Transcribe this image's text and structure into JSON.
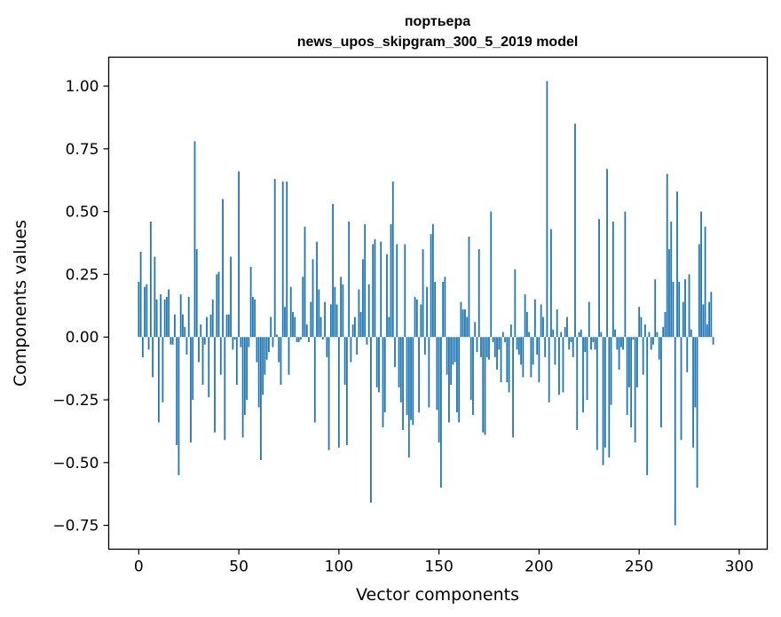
{
  "chart_data": {
    "type": "bar",
    "title": "портьера",
    "subtitle": "news_upos_skipgram_300_5_2019 model",
    "xlabel": "Vector components",
    "ylabel": "Components values",
    "xlim": [
      -15,
      314
    ],
    "ylim": [
      -0.845,
      1.115
    ],
    "xticks": [
      0,
      50,
      100,
      150,
      200,
      250,
      300
    ],
    "yticks": [
      -0.75,
      -0.5,
      -0.25,
      0.0,
      0.25,
      0.5,
      0.75,
      1.0
    ],
    "ytick_labels": [
      "−0.75",
      "−0.50",
      "−0.25",
      "0.00",
      "0.25",
      "0.50",
      "0.75",
      "1.00"
    ],
    "bar_color": "#1f77b4",
    "grid": false,
    "legend": "none",
    "values": [
      0.22,
      0.34,
      -0.08,
      0.2,
      0.21,
      -0.05,
      0.46,
      -0.16,
      0.32,
      0.15,
      -0.34,
      0.17,
      -0.26,
      0.15,
      0.16,
      0.19,
      -0.03,
      -0.03,
      0.09,
      -0.43,
      -0.55,
      0.17,
      0.09,
      0.04,
      -0.07,
      0.16,
      -0.42,
      -0.25,
      0.78,
      0.35,
      -0.1,
      0.05,
      -0.19,
      -0.03,
      0.08,
      -0.24,
      0.09,
      0.15,
      -0.38,
      0.25,
      0.26,
      -0.15,
      0.55,
      -0.41,
      0.09,
      0.09,
      0.32,
      -0.05,
      -0.01,
      -0.19,
      0.66,
      -0.04,
      -0.4,
      -0.31,
      -0.25,
      -0.04,
      0.28,
      0.16,
      0.15,
      -0.1,
      -0.28,
      -0.49,
      -0.23,
      -0.15,
      -0.09,
      -0.06,
      0.08,
      -0.04,
      0.63,
      0.01,
      -0.1,
      -0.19,
      0.62,
      0.12,
      0.62,
      -0.15,
      0.2,
      0.1,
      0.08,
      -0.02,
      -0.02,
      -0.01,
      0.24,
      0.44,
      0.05,
      -0.02,
      0.14,
      0.31,
      -0.34,
      0.38,
      0.19,
      0.08,
      -0.01,
      0.14,
      -0.08,
      -0.45,
      0.13,
      0.53,
      0.2,
      0.13,
      -0.44,
      0.24,
      0.21,
      -0.19,
      -0.43,
      0.46,
      -0.1,
      0.05,
      0.08,
      -0.07,
      0.19,
      0.1,
      0.31,
      0.45,
      -0.03,
      0.21,
      -0.66,
      0.37,
      0.39,
      -0.2,
      -0.22,
      0.38,
      -0.36,
      -0.3,
      0.33,
      0.08,
      0.45,
      0.62,
      -0.12,
      0.37,
      -0.2,
      -0.26,
      -0.37,
      0.37,
      -0.31,
      -0.48,
      -0.33,
      -0.35,
      0.16,
      0.15,
      -0.3,
      0.13,
      0.35,
      -0.07,
      0.2,
      -0.28,
      0.41,
      0.45,
      0.22,
      -0.29,
      -0.42,
      -0.6,
      0.22,
      0.24,
      -0.15,
      -0.34,
      -0.19,
      -0.11,
      -0.1,
      -0.3,
      -0.34,
      0.14,
      0.11,
      0.11,
      0.08,
      0.4,
      -0.25,
      -0.31,
      0.06,
      -0.06,
      0.35,
      -0.08,
      -0.38,
      -0.39,
      -0.08,
      -0.09,
      0.5,
      -0.02,
      -0.08,
      -0.13,
      -0.05,
      -0.18,
      0.02,
      -0.02,
      -0.18,
      -0.22,
      0.05,
      -0.4,
      0.27,
      -0.05,
      -0.07,
      -0.11,
      -0.16,
      0.17,
      0.1,
      0.02,
      -0.16,
      -0.11,
      0.15,
      -0.07,
      -0.18,
      0.13,
      0.08,
      -0.08,
      1.02,
      -0.26,
      0.43,
      0.03,
      -0.11,
      0.11,
      -0.23,
      0.02,
      -0.22,
      0.04,
      0.08,
      -0.05,
      -0.02,
      -0.08,
      0.85,
      -0.37,
      0.02,
      0.03,
      -0.3,
      -0.06,
      -0.25,
      0.14,
      -0.05,
      -0.02,
      -0.05,
      -0.45,
      0.47,
      0.02,
      -0.51,
      -0.44,
      0.67,
      -0.48,
      -0.27,
      0.46,
      0.03,
      -0.05,
      -0.13,
      -0.04,
      -0.05,
      0.5,
      -0.31,
      -0.2,
      -0.36,
      -0.01,
      -0.42,
      -0.2,
      0.12,
      0.08,
      -0.15,
      0.05,
      -0.55,
      0.02,
      -0.05,
      -0.03,
      0.23,
      0.02,
      -0.09,
      -0.36,
      0.04,
      0.1,
      0.65,
      0.35,
      0.46,
      0.22,
      -0.75,
      0.58,
      0.22,
      -0.41,
      0.14,
      0.23,
      -0.14,
      0.25,
      0.03,
      -0.44,
      -0.28,
      -0.6,
      0.37,
      0.5,
      0.13,
      0.44,
      0.05,
      0.14,
      0.18,
      -0.03
    ]
  }
}
